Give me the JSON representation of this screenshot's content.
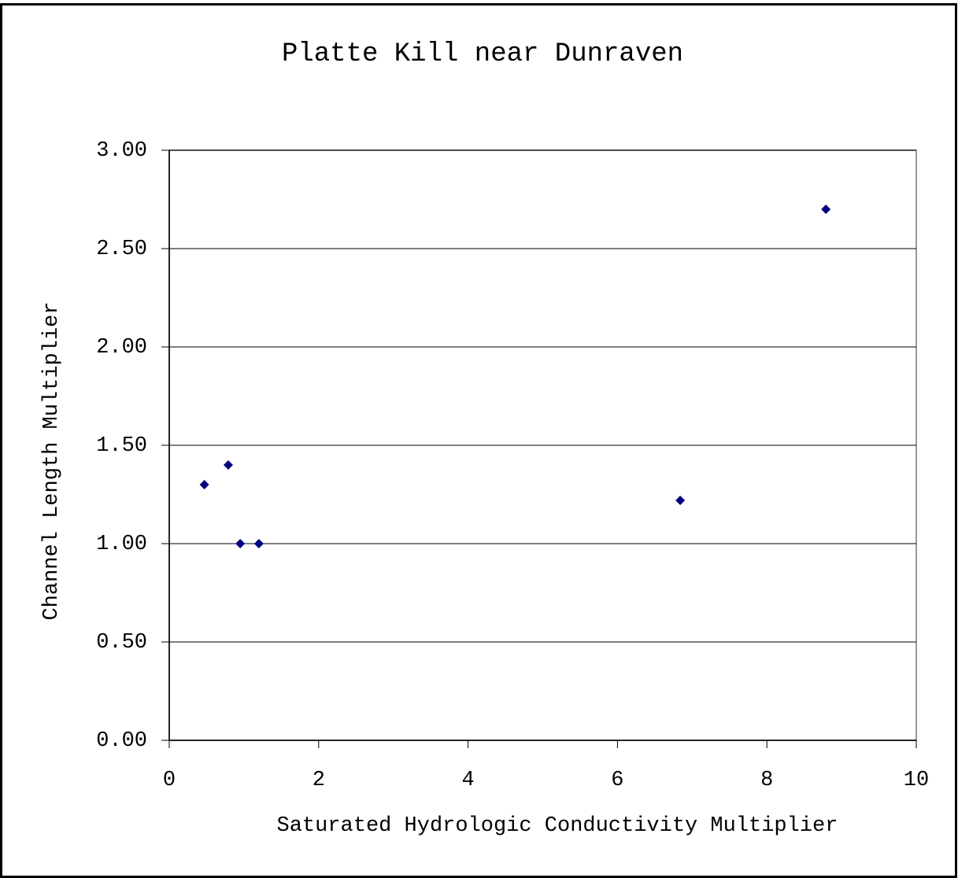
{
  "chart_data": {
    "type": "scatter",
    "title": "Platte Kill near Dunraven",
    "x_label": "Saturated Hydrologic Conductivity Multiplier",
    "y_label": "Channel Length Multiplier",
    "series": [
      {
        "color": "#000080",
        "x": [
          0.47,
          0.79,
          0.95,
          1.2,
          6.84,
          8.79
        ],
        "values": [
          1.3,
          1.4,
          1.0,
          1.0,
          1.22,
          2.7
        ]
      }
    ],
    "xlim": [
      0,
      10
    ],
    "xticks": [
      0,
      2,
      4,
      6,
      8,
      10
    ],
    "ylim": [
      0,
      3
    ],
    "yticks": [
      {
        "value": 0,
        "label": "0.00"
      },
      {
        "value": 0.5,
        "label": "0.50"
      },
      {
        "value": 1,
        "label": "1.00"
      },
      {
        "value": 1.5,
        "label": "1.50"
      },
      {
        "value": 2,
        "label": "2.00"
      },
      {
        "value": 2.5,
        "label": "2.50"
      },
      {
        "value": 3,
        "label": "3.00"
      }
    ],
    "grid": true
  }
}
